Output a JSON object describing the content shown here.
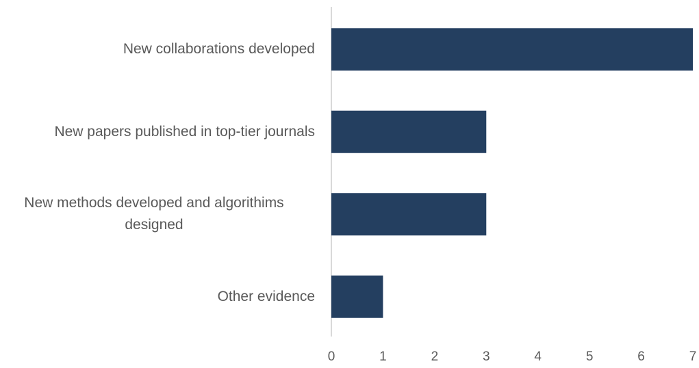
{
  "chart_data": {
    "type": "hbar",
    "categories": [
      "New collaborations developed",
      "New papers published in top-tier journals",
      "New methods developed and algorithims designed",
      "Other evidence"
    ],
    "values": [
      7,
      3,
      3,
      1
    ],
    "color": "#243f60",
    "xlim": [
      0,
      7
    ],
    "xticks": [
      0,
      1,
      2,
      3,
      4,
      5,
      6,
      7
    ],
    "grid": false
  }
}
